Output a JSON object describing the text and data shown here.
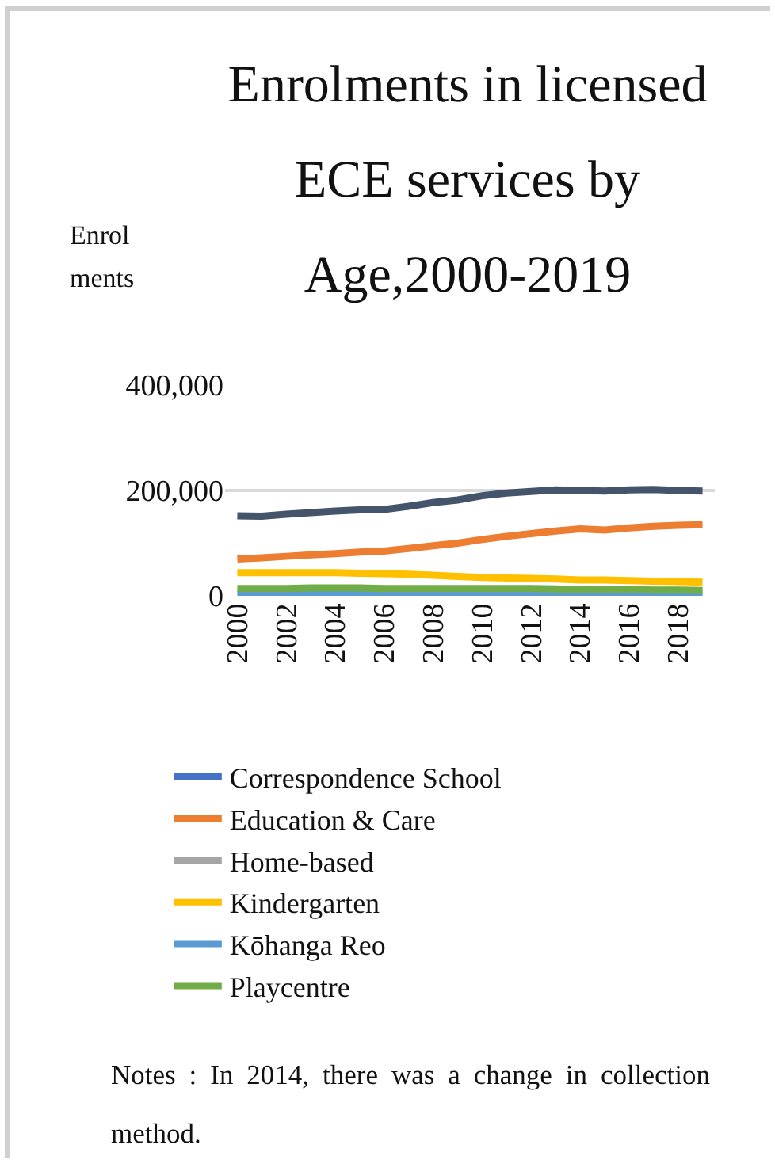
{
  "chart_data": {
    "type": "line",
    "title": "Enrolments in licensed ECE services by Age,2000-2019",
    "ylabel": "Enrolments",
    "x": [
      2000,
      2001,
      2002,
      2003,
      2004,
      2005,
      2006,
      2007,
      2008,
      2009,
      2010,
      2011,
      2012,
      2013,
      2014,
      2015,
      2016,
      2017,
      2018,
      2019
    ],
    "series": [
      {
        "name": "Correspondence School",
        "color": "#4472c4",
        "values": [
          null,
          null,
          null,
          null,
          null,
          null,
          null,
          null,
          null,
          null,
          null,
          null,
          null,
          null,
          null,
          null,
          null,
          null,
          null,
          null
        ]
      },
      {
        "name": "Education & Care",
        "color": "#ed7d31",
        "values": [
          70000,
          72000,
          75000,
          78000,
          80000,
          83000,
          85000,
          90000,
          95000,
          100000,
          107000,
          113000,
          118000,
          123000,
          127000,
          125000,
          129000,
          132000,
          134000,
          135000
        ]
      },
      {
        "name": "Home-based",
        "color": "#a5a5a5",
        "values": [
          null,
          null,
          null,
          null,
          null,
          null,
          null,
          null,
          null,
          null,
          null,
          null,
          null,
          null,
          null,
          null,
          null,
          null,
          null,
          null
        ]
      },
      {
        "name": "Kindergarten",
        "color": "#ffc000",
        "values": [
          44000,
          44000,
          44000,
          44000,
          44000,
          43000,
          42000,
          41000,
          39000,
          37000,
          35000,
          34000,
          33000,
          32000,
          30000,
          30000,
          29000,
          28000,
          27000,
          26000
        ]
      },
      {
        "name": "Kōhanga Reo",
        "color": "#5b9bd5",
        "values": [
          3000,
          3000,
          3000,
          3000,
          3000,
          3000,
          3000,
          3000,
          3000,
          3000,
          3000,
          3000,
          3000,
          3000,
          3000,
          3000,
          3000,
          3000,
          3000,
          3000
        ]
      },
      {
        "name": "Playcentre",
        "color": "#70ad47",
        "values": [
          14000,
          14000,
          14000,
          15000,
          15000,
          15000,
          14000,
          14000,
          14000,
          14000,
          14000,
          14000,
          14000,
          13000,
          12000,
          12000,
          12000,
          11000,
          11000,
          10000
        ]
      },
      {
        "color": "#44546a",
        "values": [
          152000,
          151000,
          155000,
          158000,
          161000,
          163000,
          164000,
          170000,
          177000,
          182000,
          190000,
          195000,
          198000,
          201000,
          200000,
          199000,
          201000,
          202000,
          200000,
          199000
        ]
      }
    ],
    "xlim": [
      1999.5,
      2019.5
    ],
    "xticks": [
      2000,
      2002,
      2004,
      2006,
      2008,
      2010,
      2012,
      2014,
      2016,
      2018
    ],
    "ylim": [
      0,
      400000
    ],
    "yticks": [
      0,
      {
        "value": 200000,
        "label": "200,000"
      },
      {
        "value": 400000,
        "label": "400,000"
      }
    ],
    "grid": "y",
    "legend": "bottom",
    "line_style": "solid",
    "marker": "none",
    "annotations": [
      "Notes : In 2014, there was a change in collection method."
    ]
  }
}
